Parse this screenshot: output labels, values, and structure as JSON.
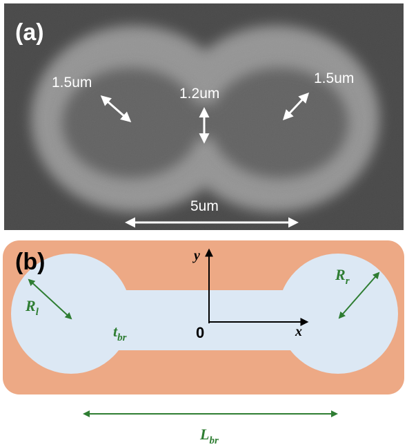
{
  "panel_a": {
    "label": "(a)",
    "measurements": {
      "left_radius": "1.5um",
      "bridge_width": "1.2um",
      "right_radius": "1.5um",
      "length": "5um"
    }
  },
  "panel_b": {
    "label": "(b)",
    "axes": {
      "y": "y",
      "x": "x",
      "origin": "0"
    },
    "symbols": {
      "left_radius": {
        "base": "R",
        "sub": "l"
      },
      "right_radius": {
        "base": "R",
        "sub": "r"
      },
      "bridge_width": {
        "base": "t",
        "sub": "br"
      },
      "bridge_length": {
        "base": "L",
        "sub": "br"
      }
    }
  },
  "colors": {
    "substrate": "#eda985",
    "device": "#dce8f4",
    "annotation_green": "#2e7d32",
    "sem_background": "#404040"
  }
}
